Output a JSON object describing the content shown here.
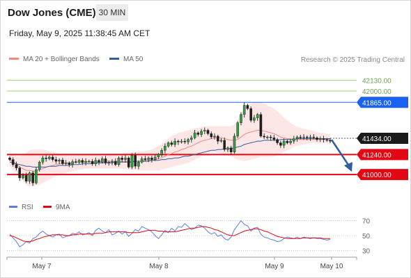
{
  "header": {
    "title": "Dow Jones (CME)",
    "timeframe": "30 MIN",
    "datetime": "Friday, May 9, 2025 11:38:45 AM CET"
  },
  "legend": {
    "ma20_bollinger": "MA 20 + Bollinger Bands",
    "ma50": "MA 50",
    "credit": "Research © 2025 Trading Central",
    "rsi": "RSI",
    "ma9": "9MA"
  },
  "colors": {
    "ma20": "#f4877f",
    "ma50": "#2f5d9e",
    "bollinger_fill": "#fde3e3",
    "resistance_green": "#9bd46b",
    "pivot_blue": "#1a63f2",
    "support_red": "#e30613",
    "last_price": "#1a1a1a",
    "arrow": "#2f5d9e",
    "rsi": "#5b7fdb",
    "ma9": "#e30613"
  },
  "chart_data": [
    {
      "type": "candlestick",
      "y_axis_labels": [
        "42130.00",
        "42000.00",
        "41865.00",
        "41434.00",
        "41240.00",
        "41000.00"
      ],
      "ylim": [
        40860,
        42300
      ],
      "x_tick_labels": [
        "May 7",
        "May 8",
        "May 9",
        "May 10"
      ],
      "levels": [
        {
          "value": 42130.0,
          "label": "42130.00",
          "kind": "resistance"
        },
        {
          "value": 42000.0,
          "label": "42000.00",
          "kind": "resistance"
        },
        {
          "value": 41865.0,
          "label": "41865.00",
          "kind": "pivot"
        },
        {
          "value": 41434.0,
          "label": "41434.00",
          "kind": "last-price"
        },
        {
          "value": 41240.0,
          "label": "41240.00",
          "kind": "support"
        },
        {
          "value": 41000.0,
          "label": "41000.00",
          "kind": "support"
        }
      ],
      "close_series": [
        41180,
        41120,
        41080,
        40960,
        40990,
        40920,
        41020,
        40900,
        41060,
        41150,
        41200,
        41190,
        41210,
        41180,
        41160,
        41175,
        41130,
        41140,
        41120,
        41155,
        41150,
        41170,
        41145,
        41160,
        41160,
        41130,
        41170,
        41150,
        41190,
        41140,
        41150,
        41160,
        41120,
        41200,
        41180,
        41200,
        41090,
        41230,
        41100,
        41150,
        41190,
        41180,
        41200,
        41180,
        41210,
        41240,
        41290,
        41340,
        41380,
        41360,
        41400,
        41390,
        41400,
        41390,
        41420,
        41440,
        41500,
        41480,
        41520,
        41530,
        41490,
        41450,
        41460,
        41400,
        41410,
        41300,
        41320,
        41270,
        41460,
        41620,
        41720,
        41830,
        41790,
        41650,
        41680,
        41720,
        41460,
        41450,
        41450,
        41440,
        41420,
        41380,
        41350,
        41400,
        41380,
        41400,
        41430,
        41450,
        41440,
        41450,
        41440,
        41450,
        41440,
        41420,
        41430,
        41420,
        41410,
        41400
      ],
      "ma20": [
        41180,
        41150,
        41130,
        41090,
        41070,
        41050,
        41050,
        41040,
        41040,
        41060,
        41070,
        41090,
        41100,
        41110,
        41120,
        41130,
        41140,
        41140,
        41140,
        41140,
        41150,
        41150,
        41150,
        41150,
        41150,
        41150,
        41150,
        41150,
        41160,
        41160,
        41160,
        41160,
        41160,
        41160,
        41160,
        41160,
        41150,
        41160,
        41160,
        41160,
        41160,
        41170,
        41170,
        41170,
        41180,
        41190,
        41200,
        41220,
        41240,
        41250,
        41270,
        41280,
        41300,
        41310,
        41330,
        41340,
        41360,
        41380,
        41400,
        41410,
        41420,
        41430,
        41440,
        41440,
        41440,
        41430,
        41420,
        41410,
        41410,
        41420,
        41450,
        41480,
        41500,
        41510,
        41520,
        41530,
        41530,
        41520,
        41510,
        41500,
        41490,
        41470,
        41450,
        41440,
        41430,
        41430,
        41420,
        41420,
        41420,
        41420,
        41420,
        41420,
        41420,
        41420,
        41420,
        41420,
        41420,
        41420
      ],
      "ma50": [
        41150,
        41140,
        41130,
        41120,
        41110,
        41100,
        41100,
        41090,
        41090,
        41090,
        41090,
        41090,
        41100,
        41100,
        41100,
        41110,
        41110,
        41110,
        41110,
        41120,
        41120,
        41120,
        41130,
        41130,
        41130,
        41130,
        41140,
        41140,
        41140,
        41140,
        41140,
        41140,
        41150,
        41150,
        41150,
        41150,
        41150,
        41150,
        41160,
        41160,
        41160,
        41160,
        41160,
        41170,
        41170,
        41170,
        41180,
        41180,
        41190,
        41190,
        41200,
        41200,
        41210,
        41220,
        41220,
        41230,
        41240,
        41250,
        41260,
        41270,
        41280,
        41290,
        41290,
        41300,
        41300,
        41310,
        41310,
        41310,
        41320,
        41330,
        41340,
        41360,
        41370,
        41380,
        41390,
        41400,
        41400,
        41410,
        41410,
        41410,
        41410,
        41410,
        41420,
        41420,
        41420,
        41420,
        41420,
        41430,
        41430,
        41430,
        41430,
        41430,
        41430,
        41430,
        41430,
        41430,
        41430,
        41430
      ],
      "bollinger_upper": [
        41250,
        41230,
        41220,
        41220,
        41230,
        41260,
        41290,
        41300,
        41300,
        41300,
        41300,
        41290,
        41280,
        41270,
        41260,
        41250,
        41250,
        41240,
        41240,
        41240,
        41240,
        41240,
        41240,
        41240,
        41240,
        41240,
        41240,
        41240,
        41250,
        41250,
        41250,
        41250,
        41250,
        41250,
        41250,
        41260,
        41260,
        41270,
        41270,
        41280,
        41280,
        41280,
        41290,
        41300,
        41320,
        41340,
        41370,
        41400,
        41430,
        41460,
        41480,
        41500,
        41510,
        41520,
        41530,
        41540,
        41550,
        41560,
        41570,
        41580,
        41580,
        41580,
        41580,
        41580,
        41580,
        41580,
        41580,
        41580,
        41600,
        41660,
        41730,
        41790,
        41830,
        41850,
        41860,
        41860,
        41860,
        41850,
        41830,
        41810,
        41790,
        41760,
        41720,
        41680,
        41650,
        41620,
        41590,
        41570,
        41560,
        41550,
        41540,
        41530,
        41520,
        41510,
        41500,
        41500,
        41490,
        41480
      ],
      "bollinger_lower": [
        41100,
        41060,
        41020,
        40970,
        40920,
        40880,
        40860,
        40860,
        40870,
        40880,
        40900,
        40920,
        40940,
        40960,
        40980,
        41000,
        41010,
        41020,
        41030,
        41040,
        41050,
        41060,
        41060,
        41070,
        41070,
        41070,
        41070,
        41070,
        41070,
        41070,
        41070,
        41070,
        41070,
        41070,
        41070,
        41070,
        41060,
        41060,
        41060,
        41050,
        41050,
        41050,
        41050,
        41050,
        41050,
        41050,
        41060,
        41070,
        41080,
        41090,
        41100,
        41110,
        41120,
        41130,
        41140,
        41160,
        41180,
        41200,
        41220,
        41240,
        41250,
        41260,
        41270,
        41260,
        41250,
        41240,
        41230,
        41220,
        41200,
        41180,
        41170,
        41160,
        41170,
        41180,
        41190,
        41200,
        41210,
        41210,
        41210,
        41210,
        41220,
        41230,
        41250,
        41270,
        41290,
        41310,
        41330,
        41340,
        41350,
        41360,
        41370,
        41380,
        41380,
        41380,
        41380,
        41380,
        41380,
        41380
      ]
    },
    {
      "type": "line",
      "y_tick_labels": [
        "70",
        "50",
        "30"
      ],
      "ylim": [
        25,
        75
      ],
      "series": [
        {
          "name": "RSI",
          "values": [
            52,
            47,
            42,
            35,
            38,
            42,
            40,
            46,
            48,
            53,
            56,
            52,
            50,
            48,
            51,
            52,
            47,
            49,
            50,
            53,
            52,
            55,
            51,
            52,
            54,
            50,
            57,
            60,
            56,
            54,
            58,
            51,
            53,
            56,
            52,
            55,
            49,
            53,
            58,
            56,
            62,
            60,
            58,
            55,
            50,
            46,
            51,
            57,
            54,
            60,
            56,
            62,
            61,
            66,
            62,
            58,
            60,
            64,
            63,
            60,
            55,
            52,
            54,
            49,
            51,
            46,
            44,
            48,
            58,
            64,
            70,
            65,
            63,
            56,
            60,
            61,
            52,
            48,
            47,
            45,
            44,
            42,
            43,
            46,
            48,
            47,
            46,
            48,
            46,
            48,
            47,
            46,
            47,
            46,
            46,
            45,
            44,
            45
          ]
        },
        {
          "name": "9MA",
          "values": [
            50,
            49,
            47,
            45,
            43,
            42,
            42,
            43,
            45,
            46,
            48,
            49,
            50,
            51,
            51,
            51,
            51,
            50,
            50,
            51,
            51,
            52,
            52,
            52,
            52,
            52,
            53,
            53,
            53,
            54,
            55,
            55,
            55,
            55,
            55,
            55,
            54,
            54,
            54,
            54,
            55,
            56,
            57,
            57,
            57,
            56,
            56,
            55,
            55,
            55,
            55,
            56,
            57,
            58,
            59,
            60,
            60,
            61,
            62,
            62,
            61,
            60,
            58,
            57,
            55,
            53,
            51,
            50,
            50,
            52,
            54,
            56,
            57,
            58,
            59,
            59,
            58,
            56,
            55,
            53,
            51,
            49,
            48,
            47,
            46,
            46,
            46,
            46,
            46,
            47,
            47,
            47,
            47,
            47,
            47,
            46,
            46,
            46
          ]
        }
      ]
    }
  ]
}
